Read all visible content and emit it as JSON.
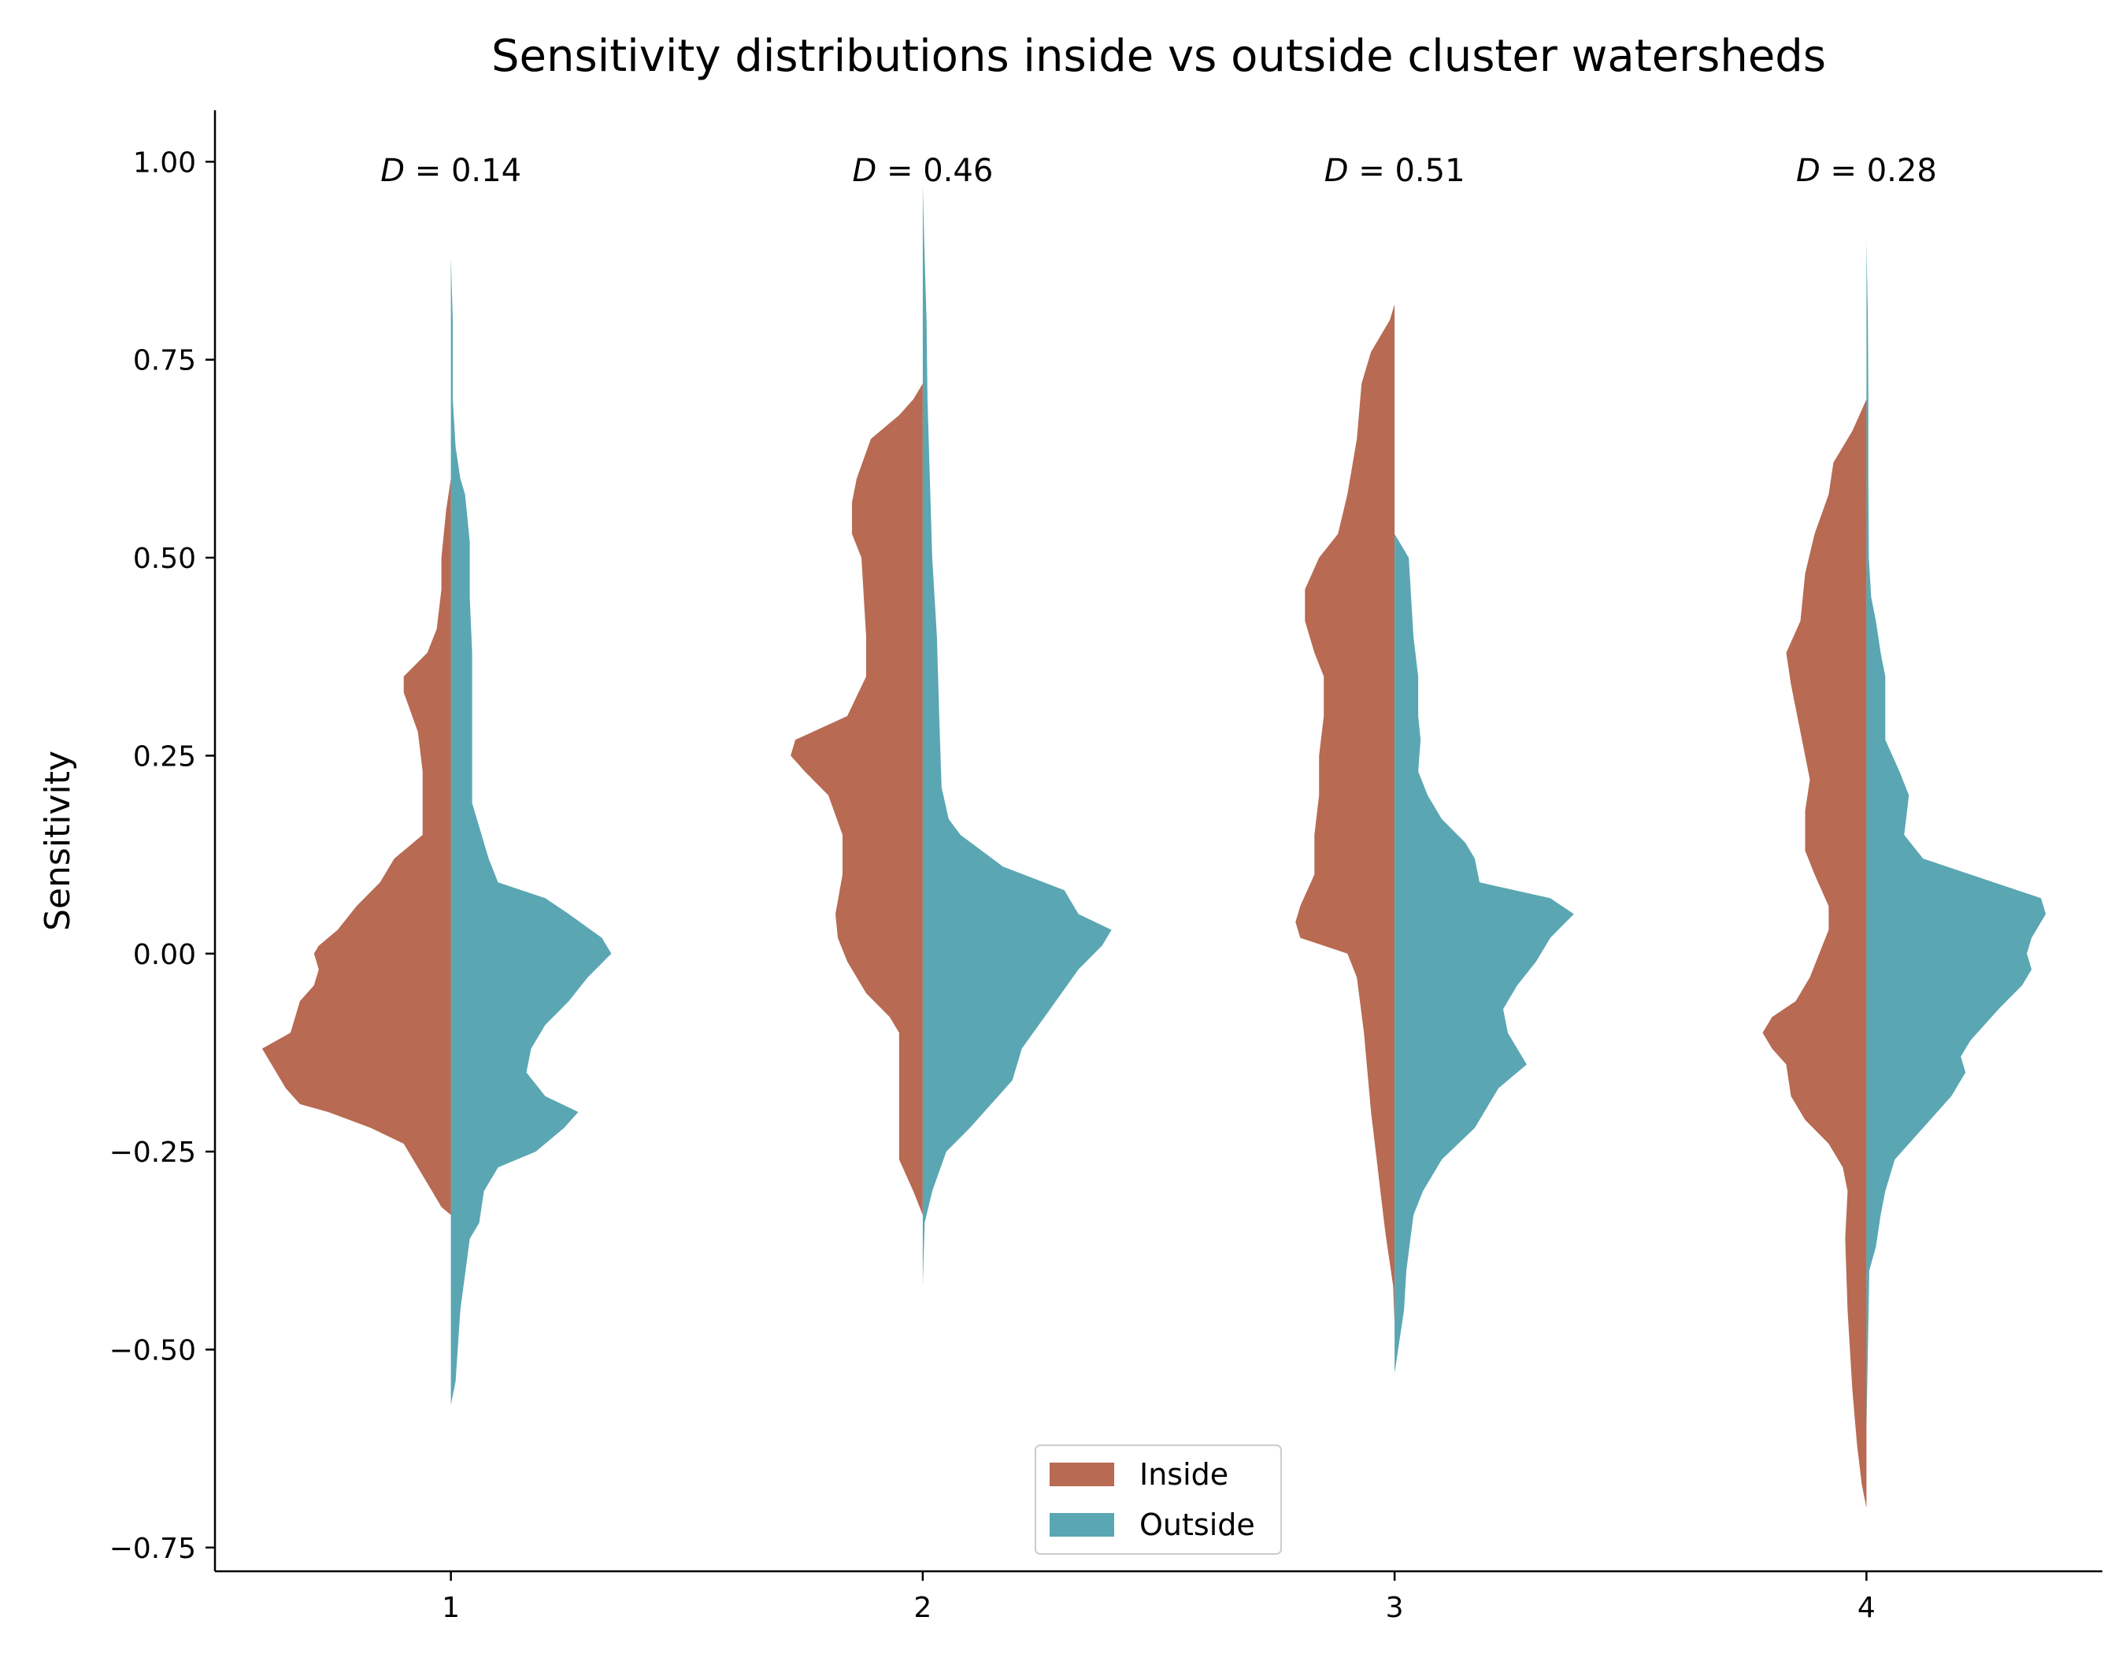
{
  "chart_data": {
    "type": "violin",
    "title": "Sensitivity distributions inside vs outside cluster watersheds",
    "xlabel": "",
    "ylabel": "Sensitivity",
    "ylim": [
      -0.78,
      1.065
    ],
    "xlim": [
      0.5,
      4.5
    ],
    "x_ticks": [
      1,
      2,
      3,
      4
    ],
    "x_tick_labels": [
      "1",
      "2",
      "3",
      "4"
    ],
    "y_ticks": [
      -0.75,
      -0.5,
      -0.25,
      0.0,
      0.25,
      0.5,
      0.75,
      1.0
    ],
    "y_tick_labels": [
      "−0.75",
      "−0.50",
      "−0.25",
      "0.00",
      "0.25",
      "0.50",
      "0.75",
      "1.00"
    ],
    "grid": false,
    "legend": {
      "placement": "lower-center",
      "entries": [
        {
          "label": "Inside",
          "color": "#b86a52"
        },
        {
          "label": "Outside",
          "color": "#5ba6b3"
        }
      ]
    },
    "annotations": [
      {
        "x": 1,
        "var": "D",
        "eq": " = ",
        "value": "0.14"
      },
      {
        "x": 2,
        "var": "D",
        "eq": " = ",
        "value": "0.46"
      },
      {
        "x": 3,
        "var": "D",
        "eq": " = ",
        "value": "0.51"
      },
      {
        "x": 4,
        "var": "D",
        "eq": " = ",
        "value": "0.28"
      }
    ],
    "groups": [
      {
        "x": 1,
        "inside": {
          "color": "#b86a52",
          "profile": [
            [
              -0.33,
              0.0
            ],
            [
              -0.32,
              0.02
            ],
            [
              -0.3,
              0.04
            ],
            [
              -0.27,
              0.07
            ],
            [
              -0.24,
              0.1
            ],
            [
              -0.22,
              0.17
            ],
            [
              -0.2,
              0.26
            ],
            [
              -0.19,
              0.32
            ],
            [
              -0.17,
              0.35
            ],
            [
              -0.14,
              0.38
            ],
            [
              -0.12,
              0.4
            ],
            [
              -0.1,
              0.34
            ],
            [
              -0.08,
              0.33
            ],
            [
              -0.06,
              0.32
            ],
            [
              -0.04,
              0.29
            ],
            [
              -0.02,
              0.28
            ],
            [
              0.0,
              0.29
            ],
            [
              0.01,
              0.28
            ],
            [
              0.03,
              0.24
            ],
            [
              0.06,
              0.2
            ],
            [
              0.09,
              0.15
            ],
            [
              0.12,
              0.12
            ],
            [
              0.15,
              0.06
            ],
            [
              0.17,
              0.06
            ],
            [
              0.2,
              0.06
            ],
            [
              0.23,
              0.06
            ],
            [
              0.28,
              0.07
            ],
            [
              0.33,
              0.1
            ],
            [
              0.35,
              0.1
            ],
            [
              0.38,
              0.05
            ],
            [
              0.41,
              0.03
            ],
            [
              0.46,
              0.02
            ],
            [
              0.5,
              0.02
            ],
            [
              0.56,
              0.01
            ],
            [
              0.6,
              0.0
            ]
          ]
        },
        "outside": {
          "color": "#5ba6b3",
          "profile": [
            [
              -0.57,
              0.0
            ],
            [
              -0.54,
              0.01
            ],
            [
              -0.45,
              0.02
            ],
            [
              -0.36,
              0.04
            ],
            [
              -0.34,
              0.06
            ],
            [
              -0.3,
              0.07
            ],
            [
              -0.27,
              0.1
            ],
            [
              -0.25,
              0.18
            ],
            [
              -0.22,
              0.24
            ],
            [
              -0.2,
              0.27
            ],
            [
              -0.18,
              0.2
            ],
            [
              -0.15,
              0.16
            ],
            [
              -0.12,
              0.17
            ],
            [
              -0.09,
              0.2
            ],
            [
              -0.06,
              0.25
            ],
            [
              -0.03,
              0.29
            ],
            [
              0.0,
              0.34
            ],
            [
              0.02,
              0.32
            ],
            [
              0.05,
              0.25
            ],
            [
              0.07,
              0.2
            ],
            [
              0.09,
              0.1
            ],
            [
              0.12,
              0.08
            ],
            [
              0.16,
              0.06
            ],
            [
              0.19,
              0.045
            ],
            [
              0.23,
              0.045
            ],
            [
              0.3,
              0.045
            ],
            [
              0.38,
              0.045
            ],
            [
              0.45,
              0.04
            ],
            [
              0.52,
              0.04
            ],
            [
              0.58,
              0.03
            ],
            [
              0.6,
              0.02
            ],
            [
              0.64,
              0.01
            ],
            [
              0.7,
              0.004
            ],
            [
              0.8,
              0.004
            ],
            [
              0.88,
              0.0
            ]
          ]
        }
      },
      {
        "x": 2,
        "inside": {
          "color": "#b86a52",
          "profile": [
            [
              -0.33,
              0.0
            ],
            [
              -0.3,
              0.02
            ],
            [
              -0.26,
              0.05
            ],
            [
              -0.2,
              0.05
            ],
            [
              -0.1,
              0.05
            ],
            [
              -0.08,
              0.07
            ],
            [
              -0.05,
              0.12
            ],
            [
              -0.01,
              0.16
            ],
            [
              0.02,
              0.18
            ],
            [
              0.05,
              0.185
            ],
            [
              0.1,
              0.17
            ],
            [
              0.15,
              0.17
            ],
            [
              0.2,
              0.2
            ],
            [
              0.23,
              0.25
            ],
            [
              0.25,
              0.28
            ],
            [
              0.27,
              0.27
            ],
            [
              0.3,
              0.16
            ],
            [
              0.35,
              0.12
            ],
            [
              0.4,
              0.12
            ],
            [
              0.45,
              0.125
            ],
            [
              0.5,
              0.13
            ],
            [
              0.53,
              0.15
            ],
            [
              0.57,
              0.15
            ],
            [
              0.6,
              0.14
            ],
            [
              0.65,
              0.11
            ],
            [
              0.68,
              0.05
            ],
            [
              0.7,
              0.02
            ],
            [
              0.72,
              0.0
            ]
          ]
        },
        "outside": {
          "color": "#5ba6b3",
          "profile": [
            [
              -0.42,
              0.0
            ],
            [
              -0.34,
              0.004
            ],
            [
              -0.3,
              0.02
            ],
            [
              -0.25,
              0.05
            ],
            [
              -0.22,
              0.1
            ],
            [
              -0.16,
              0.19
            ],
            [
              -0.12,
              0.21
            ],
            [
              -0.07,
              0.27
            ],
            [
              -0.02,
              0.33
            ],
            [
              0.01,
              0.38
            ],
            [
              0.03,
              0.4
            ],
            [
              0.05,
              0.33
            ],
            [
              0.08,
              0.3
            ],
            [
              0.11,
              0.17
            ],
            [
              0.15,
              0.08
            ],
            [
              0.17,
              0.055
            ],
            [
              0.21,
              0.04
            ],
            [
              0.3,
              0.035
            ],
            [
              0.4,
              0.03
            ],
            [
              0.45,
              0.025
            ],
            [
              0.5,
              0.02
            ],
            [
              0.6,
              0.015
            ],
            [
              0.7,
              0.01
            ],
            [
              0.8,
              0.008
            ],
            [
              0.9,
              0.003
            ],
            [
              0.97,
              0.0
            ]
          ]
        }
      },
      {
        "x": 3,
        "inside": {
          "color": "#b86a52",
          "profile": [
            [
              -0.47,
              0.0
            ],
            [
              -0.42,
              0.003
            ],
            [
              -0.35,
              0.02
            ],
            [
              -0.3,
              0.03
            ],
            [
              -0.25,
              0.04
            ],
            [
              -0.2,
              0.05
            ],
            [
              -0.1,
              0.065
            ],
            [
              -0.03,
              0.08
            ],
            [
              0.0,
              0.1
            ],
            [
              0.02,
              0.2
            ],
            [
              0.04,
              0.21
            ],
            [
              0.06,
              0.2
            ],
            [
              0.1,
              0.17
            ],
            [
              0.15,
              0.17
            ],
            [
              0.2,
              0.16
            ],
            [
              0.25,
              0.16
            ],
            [
              0.3,
              0.15
            ],
            [
              0.35,
              0.15
            ],
            [
              0.38,
              0.17
            ],
            [
              0.42,
              0.19
            ],
            [
              0.46,
              0.19
            ],
            [
              0.5,
              0.16
            ],
            [
              0.53,
              0.12
            ],
            [
              0.58,
              0.1
            ],
            [
              0.65,
              0.08
            ],
            [
              0.72,
              0.07
            ],
            [
              0.76,
              0.05
            ],
            [
              0.8,
              0.01
            ],
            [
              0.82,
              0.0
            ]
          ]
        },
        "outside": {
          "color": "#5ba6b3",
          "profile": [
            [
              -0.53,
              0.0
            ],
            [
              -0.45,
              0.02
            ],
            [
              -0.4,
              0.025
            ],
            [
              -0.33,
              0.04
            ],
            [
              -0.3,
              0.06
            ],
            [
              -0.26,
              0.1
            ],
            [
              -0.22,
              0.17
            ],
            [
              -0.17,
              0.22
            ],
            [
              -0.14,
              0.28
            ],
            [
              -0.12,
              0.26
            ],
            [
              -0.1,
              0.24
            ],
            [
              -0.07,
              0.23
            ],
            [
              -0.04,
              0.26
            ],
            [
              -0.01,
              0.3
            ],
            [
              0.02,
              0.33
            ],
            [
              0.05,
              0.38
            ],
            [
              0.07,
              0.33
            ],
            [
              0.09,
              0.18
            ],
            [
              0.12,
              0.17
            ],
            [
              0.14,
              0.15
            ],
            [
              0.17,
              0.1
            ],
            [
              0.2,
              0.07
            ],
            [
              0.23,
              0.05
            ],
            [
              0.27,
              0.055
            ],
            [
              0.3,
              0.05
            ],
            [
              0.35,
              0.05
            ],
            [
              0.4,
              0.04
            ],
            [
              0.45,
              0.035
            ],
            [
              0.5,
              0.03
            ],
            [
              0.53,
              0.0
            ]
          ]
        }
      },
      {
        "x": 4,
        "inside": {
          "color": "#b86a52",
          "profile": [
            [
              -0.7,
              0.0
            ],
            [
              -0.67,
              0.01
            ],
            [
              -0.62,
              0.02
            ],
            [
              -0.55,
              0.03
            ],
            [
              -0.45,
              0.04
            ],
            [
              -0.36,
              0.045
            ],
            [
              -0.3,
              0.04
            ],
            [
              -0.27,
              0.05
            ],
            [
              -0.24,
              0.08
            ],
            [
              -0.21,
              0.13
            ],
            [
              -0.18,
              0.16
            ],
            [
              -0.14,
              0.17
            ],
            [
              -0.12,
              0.2
            ],
            [
              -0.1,
              0.22
            ],
            [
              -0.08,
              0.2
            ],
            [
              -0.06,
              0.15
            ],
            [
              -0.03,
              0.12
            ],
            [
              0.0,
              0.1
            ],
            [
              0.03,
              0.08
            ],
            [
              0.06,
              0.08
            ],
            [
              0.1,
              0.11
            ],
            [
              0.13,
              0.13
            ],
            [
              0.18,
              0.13
            ],
            [
              0.22,
              0.12
            ],
            [
              0.28,
              0.14
            ],
            [
              0.34,
              0.16
            ],
            [
              0.38,
              0.17
            ],
            [
              0.42,
              0.14
            ],
            [
              0.48,
              0.13
            ],
            [
              0.53,
              0.11
            ],
            [
              0.58,
              0.08
            ],
            [
              0.62,
              0.07
            ],
            [
              0.66,
              0.03
            ],
            [
              0.7,
              0.0
            ]
          ]
        },
        "outside": {
          "color": "#5ba6b3",
          "profile": [
            [
              -0.68,
              0.0
            ],
            [
              -0.6,
              0.0
            ],
            [
              -0.5,
              0.003
            ],
            [
              -0.4,
              0.006
            ],
            [
              -0.37,
              0.02
            ],
            [
              -0.33,
              0.03
            ],
            [
              -0.3,
              0.04
            ],
            [
              -0.26,
              0.06
            ],
            [
              -0.22,
              0.12
            ],
            [
              -0.18,
              0.18
            ],
            [
              -0.15,
              0.21
            ],
            [
              -0.13,
              0.2
            ],
            [
              -0.11,
              0.22
            ],
            [
              -0.07,
              0.28
            ],
            [
              -0.04,
              0.33
            ],
            [
              -0.02,
              0.35
            ],
            [
              0.0,
              0.34
            ],
            [
              0.02,
              0.35
            ],
            [
              0.05,
              0.38
            ],
            [
              0.07,
              0.37
            ],
            [
              0.1,
              0.22
            ],
            [
              0.12,
              0.12
            ],
            [
              0.15,
              0.08
            ],
            [
              0.2,
              0.09
            ],
            [
              0.23,
              0.07
            ],
            [
              0.27,
              0.04
            ],
            [
              0.32,
              0.04
            ],
            [
              0.35,
              0.04
            ],
            [
              0.38,
              0.03
            ],
            [
              0.42,
              0.02
            ],
            [
              0.45,
              0.01
            ],
            [
              0.5,
              0.005
            ],
            [
              0.6,
              0.004
            ],
            [
              0.7,
              0.004
            ],
            [
              0.8,
              0.003
            ],
            [
              0.9,
              0.0
            ]
          ]
        }
      }
    ]
  }
}
